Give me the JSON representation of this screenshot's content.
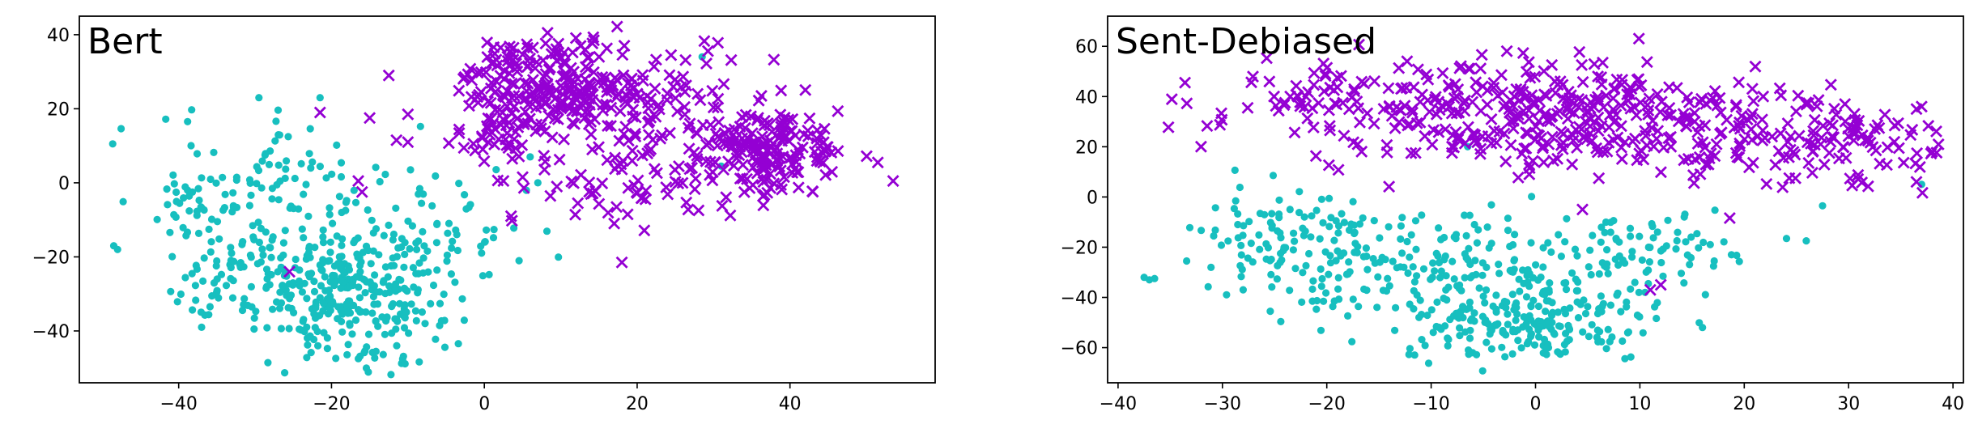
{
  "figure": {
    "background": "#ffffff"
  },
  "chart_data": [
    {
      "type": "scatter",
      "title": "Bert",
      "xlabel": "",
      "ylabel": "",
      "xlim": [
        -53,
        59
      ],
      "ylim": [
        -54,
        45
      ],
      "xticks": [
        -40,
        -20,
        0,
        20,
        40
      ],
      "yticks": [
        -40,
        -20,
        0,
        20,
        40
      ],
      "x_tick_labels": [
        "−40",
        "−20",
        "0",
        "20",
        "40"
      ],
      "y_tick_labels": [
        "−40",
        "−20",
        "0",
        "20",
        "40"
      ],
      "grid": false,
      "legend": "none",
      "series": [
        {
          "marker": "dot",
          "color": "#17bfbf",
          "clusters": [
            {
              "cx": -18,
              "cy": -28,
              "sx": 7,
              "sy": 9,
              "n": 330
            },
            {
              "cx": -33,
              "cy": -18,
              "sx": 5,
              "sy": 10,
              "n": 80
            },
            {
              "cx": -27,
              "cy": 2,
              "sx": 8,
              "sy": 8,
              "n": 70
            },
            {
              "cx": -5,
              "cy": -12,
              "sx": 5,
              "sy": 9,
              "n": 50
            },
            {
              "cx": -40,
              "cy": -5,
              "sx": 2.5,
              "sy": 3,
              "n": 18
            },
            {
              "cx": -14,
              "cy": -47,
              "sx": 5,
              "sy": 2,
              "n": 18
            }
          ],
          "points": [
            [
              -48,
              -18
            ],
            [
              -48.5,
              -17
            ],
            [
              -37,
              -39
            ],
            [
              -29.5,
              23
            ],
            [
              -21.5,
              23
            ],
            [
              28.5,
              34
            ],
            [
              31,
              4.5
            ],
            [
              6,
              7
            ],
            [
              7,
              0
            ],
            [
              5.5,
              -2
            ]
          ]
        },
        {
          "marker": "x",
          "color": "#9400d3",
          "clusters": [
            {
              "cx": 9,
              "cy": 27,
              "sx": 6,
              "sy": 6,
              "n": 230
            },
            {
              "cx": 37,
              "cy": 8,
              "sx": 5,
              "sy": 6,
              "n": 180
            },
            {
              "cx": 24,
              "cy": 17,
              "sx": 7,
              "sy": 9,
              "n": 110
            },
            {
              "cx": 2,
              "cy": 12,
              "sx": 3,
              "sy": 5,
              "n": 45
            },
            {
              "cx": 16,
              "cy": 0,
              "sx": 5,
              "sy": 6,
              "n": 40
            }
          ],
          "points": [
            [
              -21.5,
              19
            ],
            [
              -25.5,
              -24
            ],
            [
              -15,
              17.5
            ],
            [
              -12.5,
              29
            ],
            [
              -10,
              18.5
            ],
            [
              -16.5,
              0.5
            ],
            [
              -16,
              -2.5
            ],
            [
              -10,
              11
            ],
            [
              -11.5,
              11.5
            ],
            [
              2.5,
              0.5
            ],
            [
              18,
              -21.5
            ],
            [
              17,
              -11
            ],
            [
              9.5,
              -1
            ],
            [
              3.5,
              -9
            ],
            [
              53.5,
              0.5
            ],
            [
              51.5,
              5.5
            ]
          ]
        }
      ]
    },
    {
      "type": "scatter",
      "title": "Sent-Debiased",
      "xlabel": "",
      "ylabel": "",
      "xlim": [
        -41,
        41
      ],
      "ylim": [
        -74,
        72
      ],
      "xticks": [
        -40,
        -30,
        -20,
        -10,
        0,
        10,
        20,
        30,
        40
      ],
      "yticks": [
        -60,
        -40,
        -20,
        0,
        20,
        40,
        60
      ],
      "x_tick_labels": [
        "−40",
        "−30",
        "−20",
        "−10",
        "0",
        "10",
        "20",
        "30",
        "40"
      ],
      "y_tick_labels": [
        "−60",
        "−40",
        "−20",
        "0",
        "20",
        "40",
        "60"
      ],
      "grid": false,
      "legend": "none",
      "series": [
        {
          "marker": "dot",
          "color": "#17bfbf",
          "clusters": [
            {
              "cx": 0,
              "cy": -50,
              "sx": 6,
              "sy": 8,
              "n": 200
            },
            {
              "cx": -8,
              "cy": -30,
              "sx": 9,
              "sy": 11,
              "n": 180
            },
            {
              "cx": -20,
              "cy": -20,
              "sx": 5,
              "sy": 12,
              "n": 80
            },
            {
              "cx": 10,
              "cy": -20,
              "sx": 6,
              "sy": 8,
              "n": 70
            },
            {
              "cx": -27,
              "cy": -15,
              "sx": 3,
              "sy": 10,
              "n": 40
            }
          ],
          "points": [
            [
              -37,
              -33
            ],
            [
              -37.5,
              -32
            ],
            [
              -36.5,
              -32.5
            ],
            [
              27.5,
              -3.5
            ],
            [
              16,
              -52
            ],
            [
              -6.5,
              20
            ],
            [
              37,
              5
            ]
          ]
        },
        {
          "marker": "x",
          "color": "#9400d3",
          "clusters": [
            {
              "cx": 0,
              "cy": 32,
              "sx": 10,
              "sy": 12,
              "n": 330
            },
            {
              "cx": 22,
              "cy": 24,
              "sx": 7,
              "sy": 10,
              "n": 120
            },
            {
              "cx": -20,
              "cy": 38,
              "sx": 6,
              "sy": 8,
              "n": 60
            },
            {
              "cx": 33,
              "cy": 20,
              "sx": 3,
              "sy": 7,
              "n": 40
            }
          ],
          "points": [
            [
              -25.5,
              46
            ],
            [
              -22,
              40
            ],
            [
              -23.5,
              40
            ],
            [
              -19,
              47.5
            ],
            [
              37,
              36
            ],
            [
              36.5,
              35
            ],
            [
              38,
              18
            ],
            [
              36.5,
              6
            ],
            [
              4.5,
              -5
            ],
            [
              11,
              -37
            ],
            [
              12,
              -35
            ],
            [
              -8,
              20
            ]
          ]
        }
      ]
    }
  ]
}
